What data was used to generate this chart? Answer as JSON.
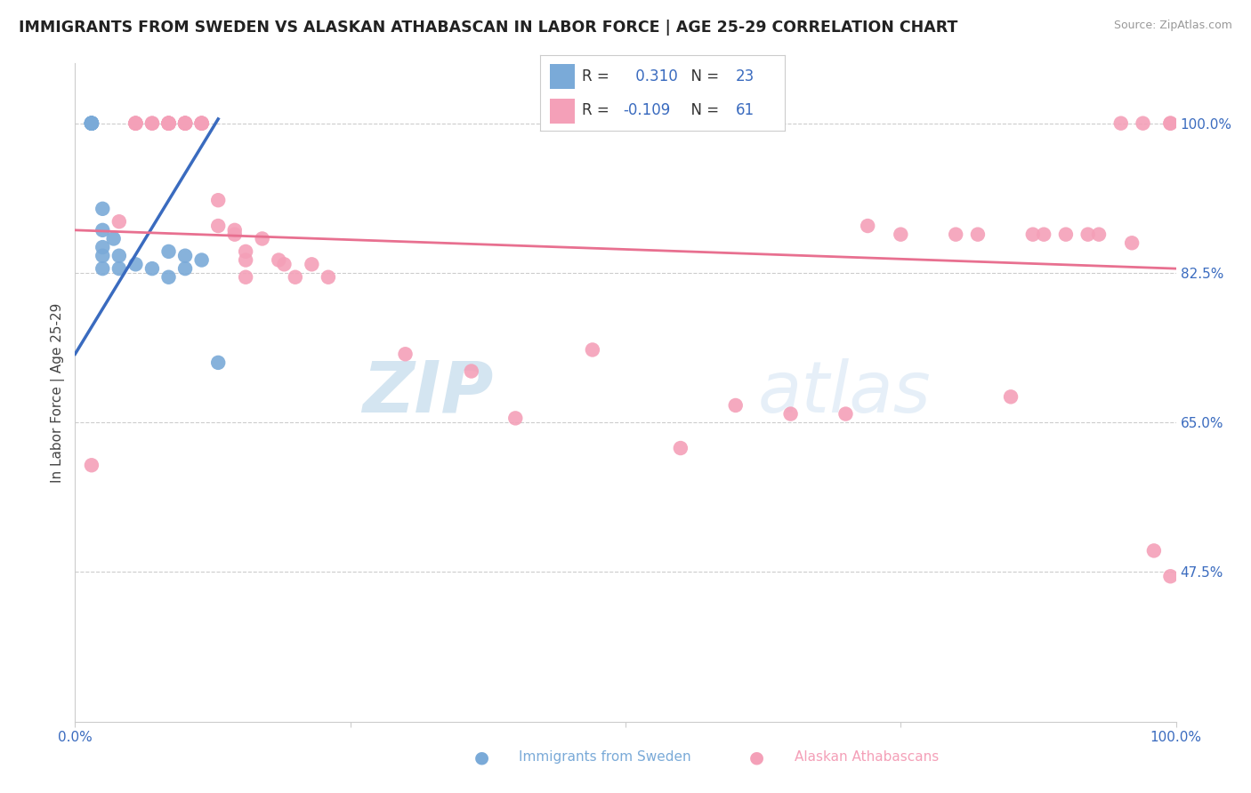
{
  "title": "IMMIGRANTS FROM SWEDEN VS ALASKAN ATHABASCAN IN LABOR FORCE | AGE 25-29 CORRELATION CHART",
  "source_text": "Source: ZipAtlas.com",
  "ylabel": "In Labor Force | Age 25-29",
  "xlim": [
    0.0,
    1.0
  ],
  "ylim": [
    0.3,
    1.07
  ],
  "yticks": [
    1.0,
    0.825,
    0.65,
    0.475
  ],
  "ytick_labels": [
    "100.0%",
    "82.5%",
    "65.0%",
    "47.5%"
  ],
  "blue_R": 0.31,
  "blue_N": 23,
  "pink_R": -0.109,
  "pink_N": 61,
  "blue_scatter_x": [
    0.015,
    0.015,
    0.015,
    0.015,
    0.015,
    0.015,
    0.015,
    0.025,
    0.025,
    0.025,
    0.025,
    0.025,
    0.035,
    0.04,
    0.04,
    0.055,
    0.07,
    0.085,
    0.085,
    0.1,
    0.1,
    0.115,
    0.13
  ],
  "blue_scatter_y": [
    1.0,
    1.0,
    1.0,
    1.0,
    1.0,
    1.0,
    1.0,
    0.9,
    0.875,
    0.855,
    0.845,
    0.83,
    0.865,
    0.845,
    0.83,
    0.835,
    0.83,
    0.85,
    0.82,
    0.845,
    0.83,
    0.84,
    0.72
  ],
  "pink_scatter_x": [
    0.015,
    0.04,
    0.055,
    0.055,
    0.055,
    0.055,
    0.07,
    0.07,
    0.085,
    0.085,
    0.085,
    0.085,
    0.085,
    0.085,
    0.1,
    0.1,
    0.1,
    0.1,
    0.1,
    0.115,
    0.115,
    0.115,
    0.115,
    0.13,
    0.13,
    0.145,
    0.145,
    0.155,
    0.155,
    0.155,
    0.17,
    0.185,
    0.19,
    0.2,
    0.215,
    0.23,
    0.3,
    0.36,
    0.4,
    0.47,
    0.55,
    0.6,
    0.65,
    0.7,
    0.72,
    0.75,
    0.8,
    0.82,
    0.85,
    0.87,
    0.88,
    0.9,
    0.92,
    0.93,
    0.95,
    0.96,
    0.97,
    0.98,
    0.995,
    0.995,
    0.995
  ],
  "pink_scatter_y": [
    0.6,
    0.885,
    1.0,
    1.0,
    1.0,
    1.0,
    1.0,
    1.0,
    1.0,
    1.0,
    1.0,
    1.0,
    1.0,
    1.0,
    1.0,
    1.0,
    1.0,
    1.0,
    1.0,
    1.0,
    1.0,
    1.0,
    1.0,
    0.91,
    0.88,
    0.87,
    0.875,
    0.85,
    0.84,
    0.82,
    0.865,
    0.84,
    0.835,
    0.82,
    0.835,
    0.82,
    0.73,
    0.71,
    0.655,
    0.735,
    0.62,
    0.67,
    0.66,
    0.66,
    0.88,
    0.87,
    0.87,
    0.87,
    0.68,
    0.87,
    0.87,
    0.87,
    0.87,
    0.87,
    1.0,
    0.86,
    1.0,
    0.5,
    1.0,
    0.47,
    1.0
  ],
  "blue_line_x": [
    0.0,
    0.13
  ],
  "blue_line_y": [
    0.73,
    1.005
  ],
  "pink_line_x": [
    0.0,
    1.0
  ],
  "pink_line_y": [
    0.875,
    0.83
  ],
  "blue_line_color": "#3a6bbf",
  "pink_line_color": "#e87090",
  "blue_scatter_color": "#7aaad8",
  "pink_scatter_color": "#f4a0b8",
  "watermark_zip": "ZIP",
  "watermark_atlas": "atlas",
  "background_color": "#ffffff",
  "grid_color": "#cccccc",
  "title_color": "#222222",
  "axis_label_color": "#444444",
  "ytick_color": "#3a6bbf",
  "xtick_color": "#3a6bbf",
  "legend_blue_text": "R =  0.310   N = 23",
  "legend_pink_text": "R = -0.109   N = 61",
  "bottom_label_blue": "Immigrants from Sweden",
  "bottom_label_pink": "Alaskan Athabascans"
}
